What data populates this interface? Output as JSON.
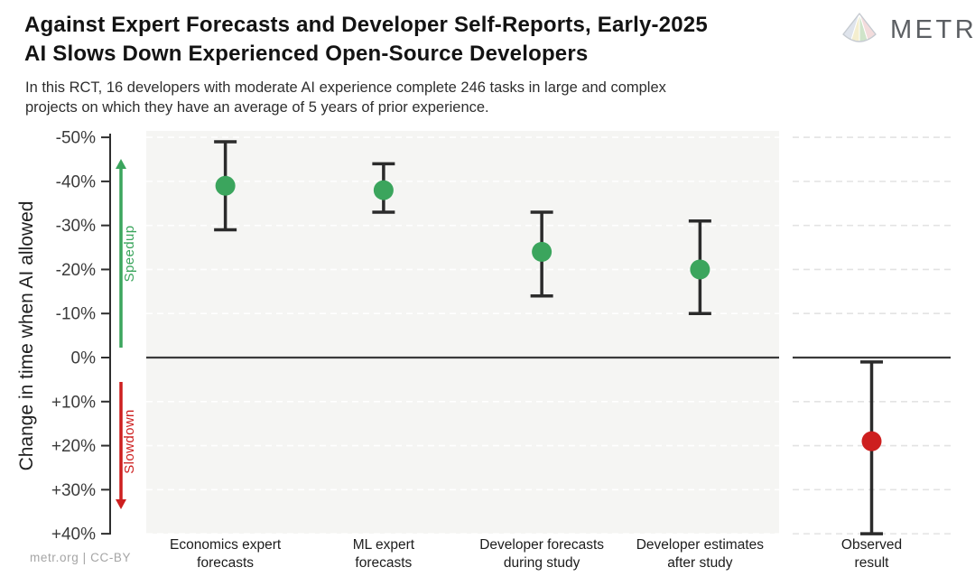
{
  "header": {
    "title_lines": [
      "Against Expert Forecasts and Developer Self-Reports, Early-2025",
      "AI Slows Down Experienced Open-Source Developers"
    ],
    "brand": "METR",
    "subtitle_lines": [
      "In this RCT, 16 developers with moderate AI experience complete 246 tasks in large and complex",
      "projects on which they have an average of 5 years of prior experience."
    ]
  },
  "footer": {
    "credit": "metr.org | CC-BY"
  },
  "colors": {
    "green": "#3ba55d",
    "red": "#cd1f1f",
    "errorbar": "#2b2b2b",
    "axis": "#2e2e2e",
    "zero": "#3a3a3a",
    "panel_bg": "#f5f5f3",
    "grid_left": "#ffffff",
    "grid_right": "#e3e3e3"
  },
  "chart_data": {
    "type": "scatter",
    "title": "Against Expert Forecasts and Developer Self-Reports, Early-2025 AI Slows Down Experienced Open-Source Developers",
    "xlabel": "",
    "ylabel": "Change in time when AI allowed",
    "ylim": [
      -50,
      40
    ],
    "axis_inverted": true,
    "grid": true,
    "annotations": {
      "speedup": "Speedup",
      "slowdown": "Slowdown"
    },
    "yticks": [
      {
        "value": -50,
        "label": "-50%"
      },
      {
        "value": -40,
        "label": "-40%"
      },
      {
        "value": -30,
        "label": "-30%"
      },
      {
        "value": -20,
        "label": "-20%"
      },
      {
        "value": -10,
        "label": "-10%"
      },
      {
        "value": 0,
        "label": "0%"
      },
      {
        "value": 10,
        "label": "+10%"
      },
      {
        "value": 20,
        "label": "+20%"
      },
      {
        "value": 30,
        "label": "+30%"
      },
      {
        "value": 40,
        "label": "+40%"
      }
    ],
    "points": [
      {
        "category": "Economics expert\nforecasts",
        "value": -39,
        "ci": [
          -49,
          -29
        ],
        "color": "green",
        "panel": 0
      },
      {
        "category": "ML expert\nforecasts",
        "value": -38,
        "ci": [
          -44,
          -33
        ],
        "color": "green",
        "panel": 0
      },
      {
        "category": "Developer forecasts\nduring study",
        "value": -24,
        "ci": [
          -33,
          -14
        ],
        "color": "green",
        "panel": 0
      },
      {
        "category": "Developer estimates\nafter study",
        "value": -20,
        "ci": [
          -31,
          -10
        ],
        "color": "green",
        "panel": 0
      },
      {
        "category": "Observed\nresult",
        "value": 19,
        "ci": [
          1,
          40
        ],
        "color": "red",
        "panel": 1
      }
    ]
  }
}
